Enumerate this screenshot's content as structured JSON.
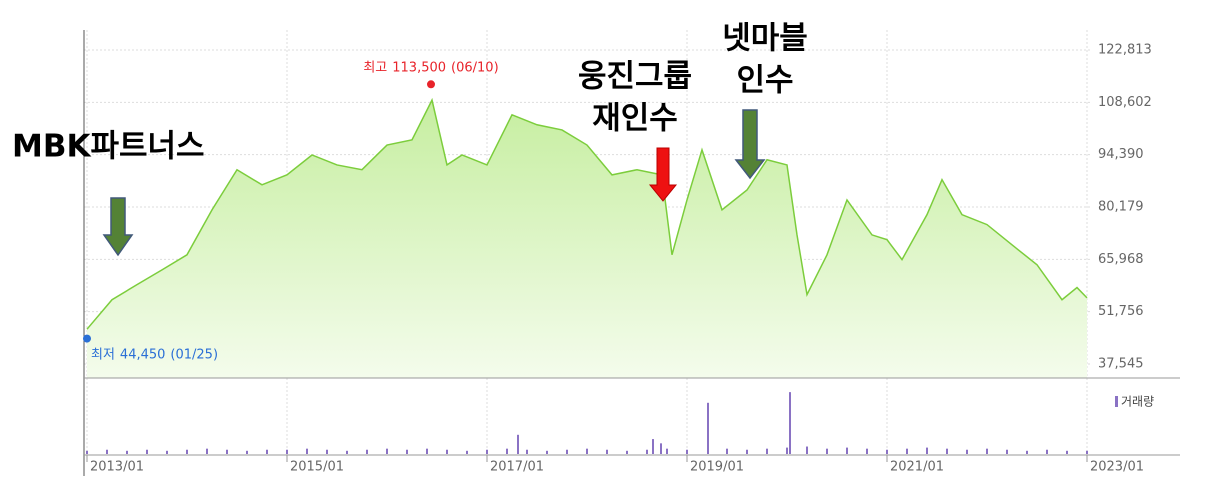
{
  "chart_data": {
    "type": "line",
    "series": [
      {
        "color": "#7ccd3c",
        "x": [
          2013.0,
          2013.25,
          2013.5,
          2013.75,
          2014.0,
          2014.25,
          2014.5,
          2014.75,
          2015.0,
          2015.25,
          2015.5,
          2015.75,
          2016.0,
          2016.25,
          2016.45,
          2016.6,
          2016.75,
          2017.0,
          2017.25,
          2017.5,
          2017.75,
          2018.0,
          2018.25,
          2018.5,
          2018.75,
          2018.85,
          2019.0,
          2019.15,
          2019.35,
          2019.6,
          2019.8,
          2020.0,
          2020.1,
          2020.2,
          2020.4,
          2020.6,
          2020.85,
          2021.0,
          2021.15,
          2021.4,
          2021.55,
          2021.75,
          2022.0,
          2022.25,
          2022.5,
          2022.75,
          2022.9,
          2023.0
        ],
        "values": [
          47000,
          55000,
          59100,
          63100,
          67200,
          79400,
          90300,
          86200,
          88900,
          94300,
          91600,
          90300,
          97000,
          98400,
          109200,
          91600,
          94300,
          91600,
          105200,
          102500,
          101100,
          97000,
          88900,
          90300,
          88900,
          67200,
          82100,
          95700,
          79400,
          84800,
          93000,
          91600,
          72600,
          56400,
          67200,
          82100,
          72600,
          71300,
          65900,
          78100,
          87600,
          78100,
          75400,
          69900,
          64500,
          55000,
          58300,
          55500
        ]
      }
    ],
    "xlim": [
      2012.97,
      2023.03
    ],
    "xticks": [
      {
        "value": 2013,
        "label": "2013/01"
      },
      {
        "value": 2015,
        "label": "2015/01"
      },
      {
        "value": 2017,
        "label": "2017/01"
      },
      {
        "value": 2019,
        "label": "2019/01"
      },
      {
        "value": 2021,
        "label": "2021/01"
      },
      {
        "value": 2023,
        "label": "2023/01"
      }
    ],
    "ylim": [
      33748,
      128237
    ],
    "yticks": [
      {
        "value": 37545,
        "label": "37,545"
      },
      {
        "value": 51756,
        "label": "51,756"
      },
      {
        "value": 65968,
        "label": "65,968"
      },
      {
        "value": 80179,
        "label": "80,179"
      },
      {
        "value": 94390,
        "label": "94,390"
      },
      {
        "value": 108602,
        "label": "108,602"
      },
      {
        "value": 122813,
        "label": "122,813"
      }
    ],
    "grid": true,
    "high": {
      "label": "최고",
      "value": 113500,
      "value_label": "113,500",
      "date": "(06/10)",
      "x": 2016.44,
      "color": "#e8232a"
    },
    "low": {
      "label": "최저",
      "value": 44450,
      "value_label": "44,450",
      "date": "(01/25)",
      "x": 2013.0,
      "color": "#2a6fd6"
    },
    "volume": {
      "name": "거래량",
      "color": "#8a72c4",
      "x": [
        2013.0,
        2013.2,
        2013.4,
        2013.6,
        2013.8,
        2014.0,
        2014.2,
        2014.4,
        2014.6,
        2014.8,
        2015.0,
        2015.2,
        2015.4,
        2015.6,
        2015.8,
        2016.0,
        2016.2,
        2016.4,
        2016.6,
        2016.8,
        2017.0,
        2017.2,
        2017.31,
        2017.4,
        2017.6,
        2017.8,
        2018.0,
        2018.2,
        2018.4,
        2018.6,
        2018.66,
        2018.74,
        2018.8,
        2019.0,
        2019.21,
        2019.4,
        2019.6,
        2019.8,
        2020.0,
        2020.03,
        2020.2,
        2020.4,
        2020.6,
        2020.8,
        2021.0,
        2021.2,
        2021.4,
        2021.6,
        2021.8,
        2022.0,
        2022.2,
        2022.4,
        2022.6,
        2022.8,
        2023.0
      ],
      "values": [
        3,
        4,
        3,
        4,
        3,
        4,
        5,
        4,
        3,
        4,
        4,
        5,
        4,
        3,
        4,
        5,
        4,
        5,
        4,
        3,
        4,
        5,
        18,
        4,
        3,
        4,
        5,
        4,
        3,
        4,
        14,
        10,
        5,
        4,
        48,
        5,
        4,
        5,
        6,
        58,
        7,
        5,
        6,
        5,
        4,
        5,
        6,
        5,
        4,
        5,
        4,
        3,
        4,
        3,
        3
      ],
      "ylim": [
        0,
        60
      ]
    },
    "annotations": [
      {
        "lines": [
          "MBK파트너스"
        ]
      },
      {
        "lines": [
          "웅진그룹",
          "재인수"
        ]
      },
      {
        "lines": [
          "넷마블",
          "인수"
        ]
      }
    ]
  }
}
